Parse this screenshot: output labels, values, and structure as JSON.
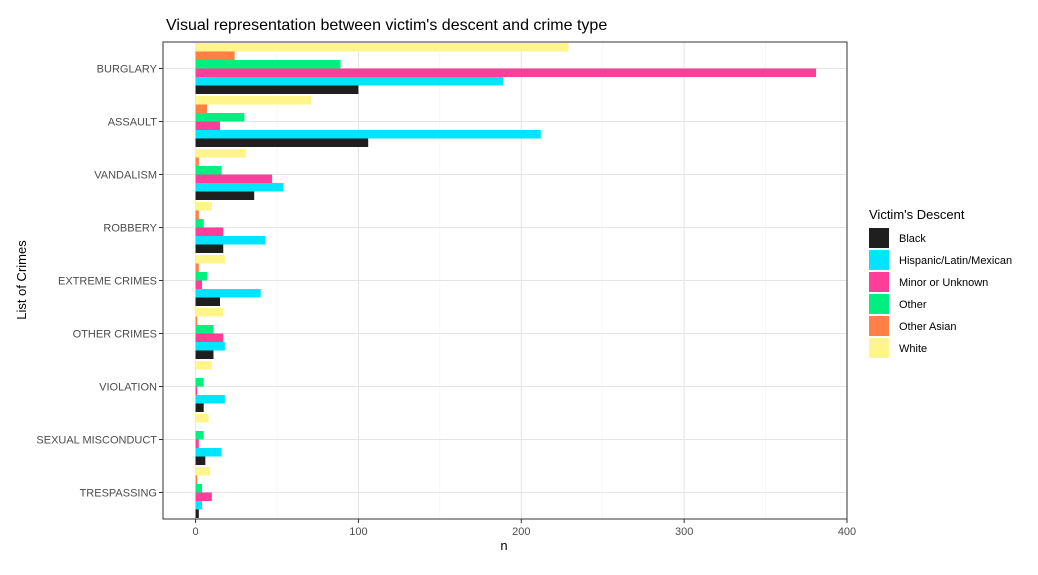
{
  "chart_data": {
    "type": "bar",
    "orientation": "horizontal",
    "title": "Visual representation between victim's descent and crime type",
    "xlabel": "n",
    "ylabel": "List of Crimes",
    "xlim": [
      -20,
      400
    ],
    "x_ticks": [
      0,
      100,
      200,
      300,
      400
    ],
    "grid": true,
    "legend_position": "right",
    "legend_title": "Victim's Descent",
    "categories": [
      "BURGLARY",
      "ASSAULT",
      "VANDALISM",
      "ROBBERY",
      "EXTREME CRIMES",
      "OTHER CRIMES",
      "VIOLATION",
      "SEXUAL MISCONDUCT",
      "TRESPASSING"
    ],
    "series": [
      {
        "name": "Black",
        "color": "#1f1f1f",
        "values": [
          100,
          106,
          36,
          17,
          15,
          11,
          5,
          6,
          2
        ]
      },
      {
        "name": "Hispanic/Latin/Mexican",
        "color": "#00e5ff",
        "values": [
          189,
          212,
          54,
          43,
          40,
          18,
          18,
          16,
          4
        ]
      },
      {
        "name": "Minor or Unknown",
        "color": "#ff3e9a",
        "values": [
          381,
          15,
          47,
          17,
          4,
          17,
          1,
          2,
          10
        ]
      },
      {
        "name": "Other",
        "color": "#00f07f",
        "values": [
          89,
          30,
          16,
          5,
          7,
          11,
          5,
          5,
          4
        ]
      },
      {
        "name": "Other Asian",
        "color": "#ff7f45",
        "values": [
          24,
          7,
          2,
          2,
          2,
          1,
          0,
          0,
          1
        ]
      },
      {
        "name": "White",
        "color": "#fff58a",
        "values": [
          229,
          71,
          31,
          10,
          18,
          17,
          10,
          8,
          9
        ]
      }
    ]
  }
}
